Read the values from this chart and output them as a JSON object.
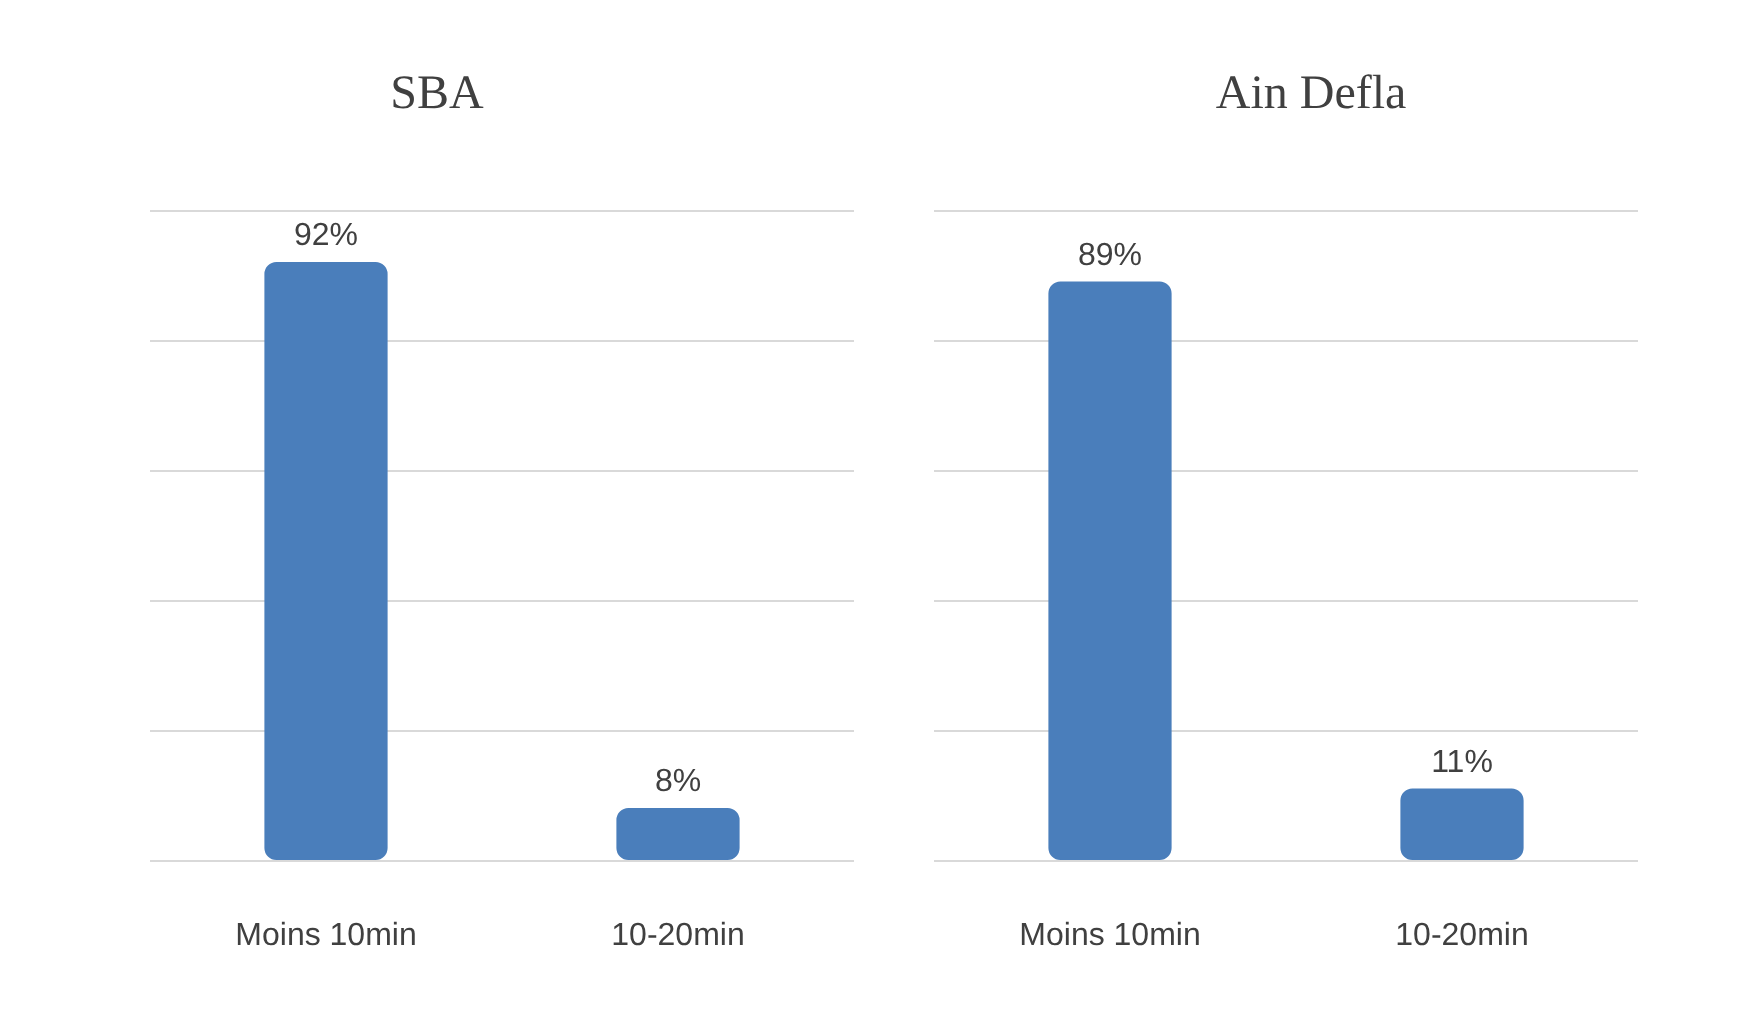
{
  "chart_data": [
    {
      "type": "bar",
      "title": "SBA",
      "categories": [
        "Moins 10min",
        "10-20min"
      ],
      "values": [
        92,
        8
      ],
      "value_labels": [
        "92%",
        "8%"
      ],
      "color": "#4a7ebb",
      "tick_labels": "x",
      "grid": "y"
    },
    {
      "type": "bar",
      "title": "Ain Defla",
      "categories": [
        "Moins 10min",
        "10-20min"
      ],
      "values": [
        89,
        11
      ],
      "value_labels": [
        "89%",
        "11%"
      ],
      "color": "#4a7ebb",
      "tick_labels": "x",
      "grid": "y"
    }
  ]
}
